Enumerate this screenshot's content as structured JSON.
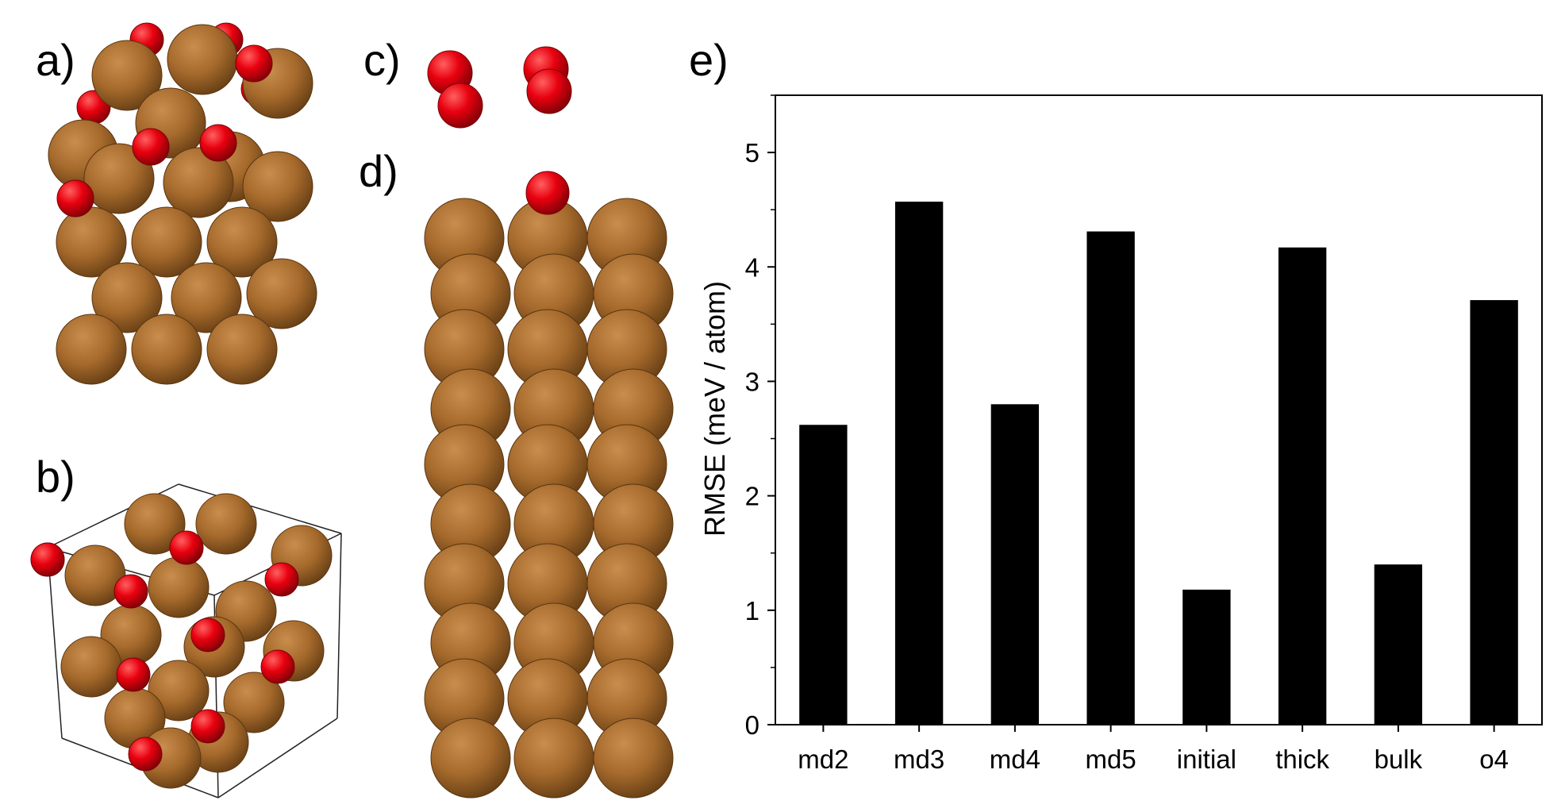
{
  "panel_labels": {
    "a": "a)",
    "b": "b)",
    "c": "c)",
    "d": "d)",
    "e": "e)"
  },
  "atom_colors": {
    "copper": "#a66a2c",
    "oxygen": "#e8000f"
  },
  "chart_data": {
    "type": "bar",
    "categories": [
      "md2",
      "md3",
      "md4",
      "md5",
      "initial",
      "thick",
      "bulk",
      "o4"
    ],
    "values": [
      2.62,
      4.57,
      2.8,
      4.31,
      1.18,
      4.17,
      1.4,
      3.71
    ],
    "title": "",
    "xlabel": "",
    "ylabel": "RMSE (meV / atom)",
    "ylim": [
      0,
      5.5
    ],
    "yticks": [
      0,
      1,
      2,
      3,
      4,
      5
    ],
    "bar_color": "#000000",
    "grid": false,
    "legend": "none"
  }
}
